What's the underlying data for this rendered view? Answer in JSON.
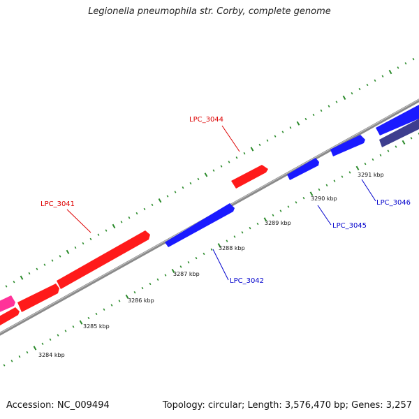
{
  "title": "Legionella pneumophila str. Corby, complete genome",
  "footer": {
    "accession": "Accession: NC_009494",
    "summary": "Topology: circular; Length: 3,576,470 bp; Genes: 3,257"
  },
  "colors": {
    "forward": "#ff1a1a",
    "reverse": "#1a1aff",
    "label_forward": "#dd0000",
    "label_reverse": "#0000cc",
    "other_forward": "#ff3399",
    "other_reverse": "#3d3d8f",
    "tick": "#2a8a2a"
  },
  "tick_labels": [
    "3284 kbp",
    "3285 kbp",
    "3286 kbp",
    "3287 kbp",
    "3288 kbp",
    "3289 kbp",
    "3290 kbp",
    "3291 kbp"
  ],
  "genes": [
    {
      "label": "LPC_3041",
      "strand": "forward"
    },
    {
      "label": "LPC_3042",
      "strand": "reverse"
    },
    {
      "label": "LPC_3044",
      "strand": "forward"
    },
    {
      "label": "LPC_3045",
      "strand": "reverse"
    },
    {
      "label": "LPC_3046",
      "strand": "reverse"
    }
  ]
}
